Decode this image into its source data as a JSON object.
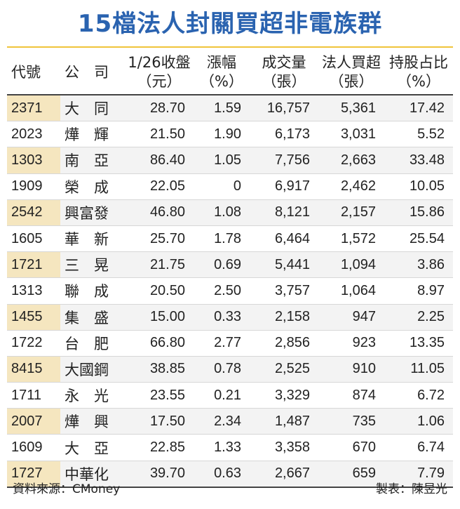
{
  "title": "15檔法人封關買超非電族群",
  "colors": {
    "title": "#2a63b0",
    "accent": "#f0c43a",
    "stripe_code": "#f5e6bf",
    "stripe_row": "#f3f3f3"
  },
  "table": {
    "headers": [
      [
        "代號",
        ""
      ],
      [
        "公　司",
        ""
      ],
      [
        "1/26收盤",
        "（元）"
      ],
      [
        "漲幅",
        "（%）"
      ],
      [
        "成交量",
        "（張）"
      ],
      [
        "法人買超",
        "（張）"
      ],
      [
        "持股占比",
        "（%）"
      ]
    ],
    "rows": [
      [
        "2371",
        "大　同",
        "28.70",
        "1.59",
        "16,757",
        "5,361",
        "17.42"
      ],
      [
        "2023",
        "燁　輝",
        "21.50",
        "1.90",
        "6,173",
        "3,031",
        "5.52"
      ],
      [
        "1303",
        "南　亞",
        "86.40",
        "1.05",
        "7,756",
        "2,663",
        "33.48"
      ],
      [
        "1909",
        "榮　成",
        "22.05",
        "0",
        "6,917",
        "2,462",
        "10.05"
      ],
      [
        "2542",
        "興富發",
        "46.80",
        "1.08",
        "8,121",
        "2,157",
        "15.86"
      ],
      [
        "1605",
        "華　新",
        "25.70",
        "1.78",
        "6,464",
        "1,572",
        "25.54"
      ],
      [
        "1721",
        "三　晃",
        "21.75",
        "0.69",
        "5,441",
        "1,094",
        "3.86"
      ],
      [
        "1313",
        "聯　成",
        "20.50",
        "2.50",
        "3,757",
        "1,064",
        "8.97"
      ],
      [
        "1455",
        "集　盛",
        "15.00",
        "0.33",
        "2,158",
        "947",
        "2.25"
      ],
      [
        "1722",
        "台　肥",
        "66.80",
        "2.77",
        "2,856",
        "923",
        "13.35"
      ],
      [
        "8415",
        "大國鋼",
        "38.85",
        "0.78",
        "2,525",
        "910",
        "11.05"
      ],
      [
        "1711",
        "永　光",
        "23.55",
        "0.21",
        "3,329",
        "874",
        "6.72"
      ],
      [
        "2007",
        "燁　興",
        "17.50",
        "2.34",
        "1,487",
        "735",
        "1.06"
      ],
      [
        "1609",
        "大　亞",
        "22.85",
        "1.33",
        "3,358",
        "670",
        "6.74"
      ],
      [
        "1727",
        "中華化",
        "39.70",
        "0.63",
        "2,667",
        "659",
        "7.79"
      ]
    ]
  },
  "footer": {
    "source": "資料來源：CMoney",
    "maker": "製表：陳昱光"
  }
}
